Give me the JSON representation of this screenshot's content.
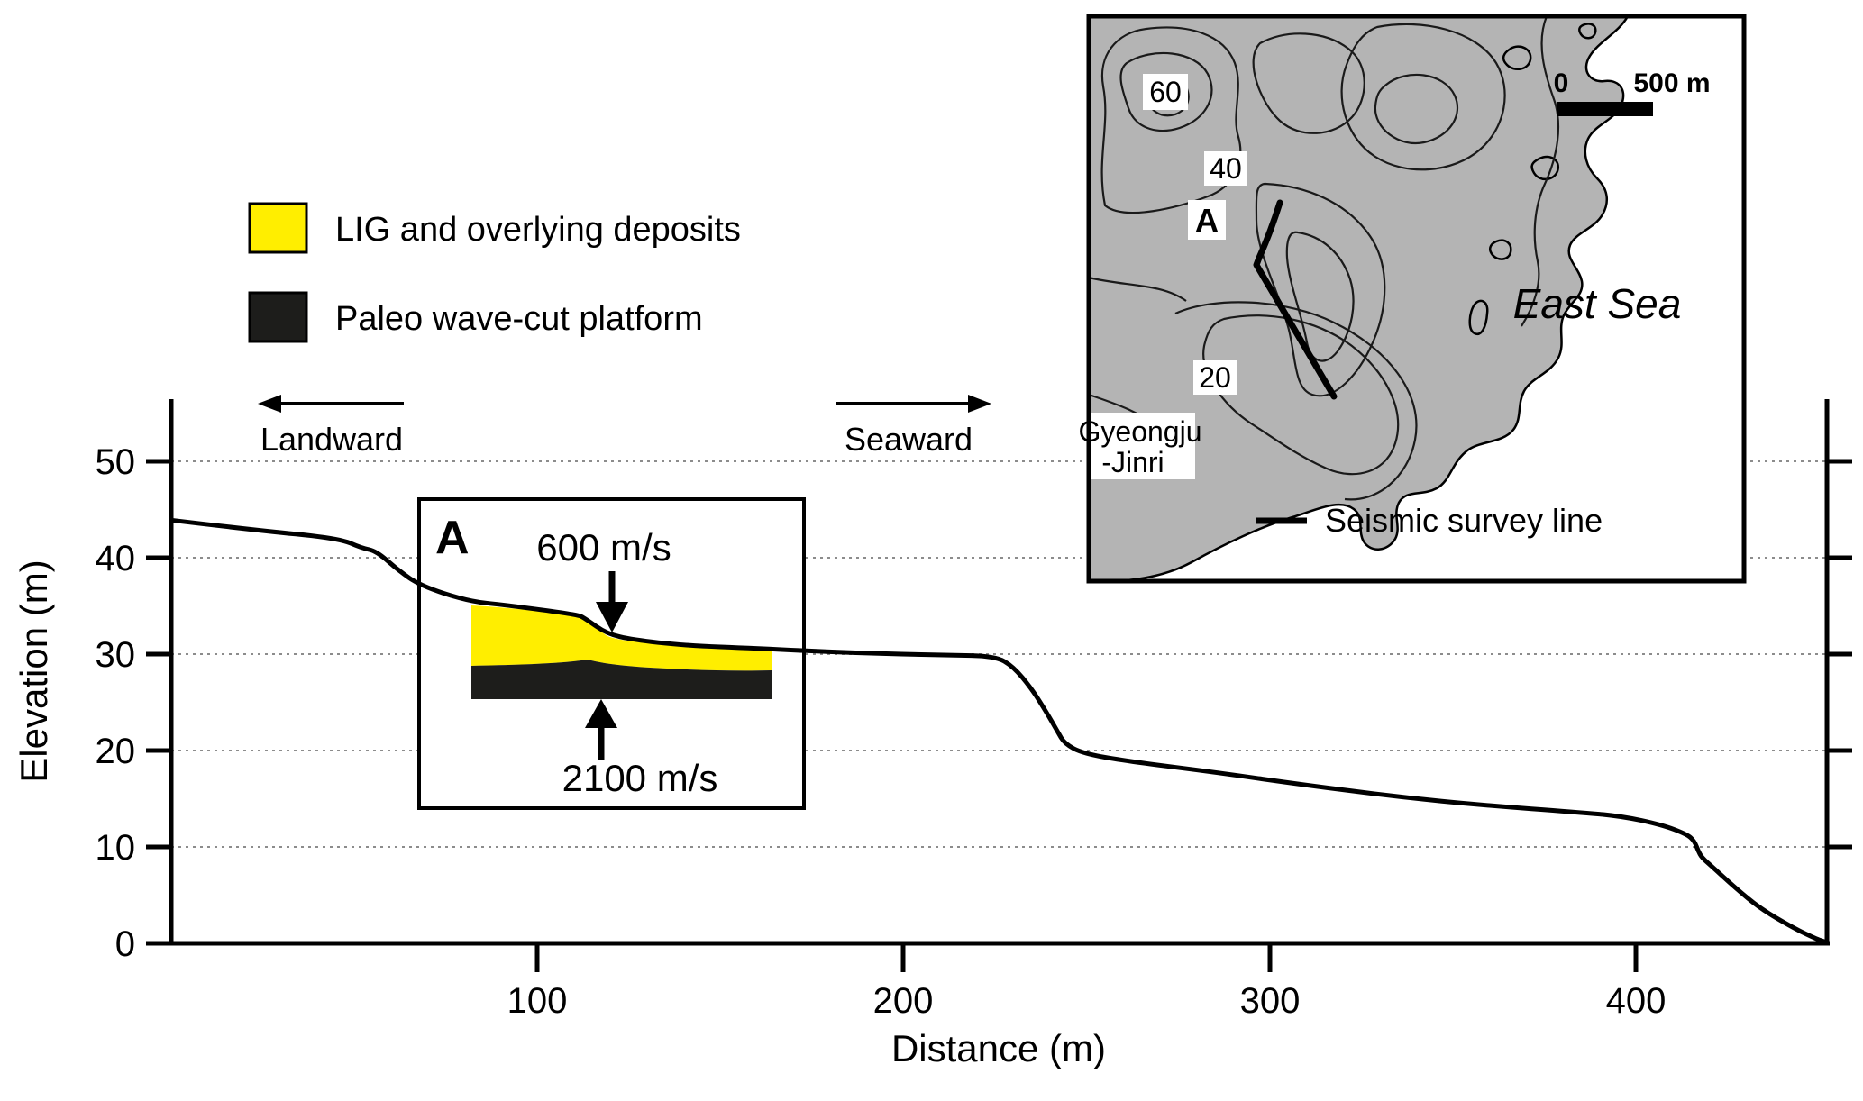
{
  "figure": {
    "legend": {
      "items": [
        {
          "label": "LIG and overlying deposits",
          "color": "#ffee00"
        },
        {
          "label": "Paleo wave-cut platform",
          "color": "#1d1d1b"
        }
      ]
    },
    "arrows": {
      "landward": "Landward",
      "seaward": "Seaward"
    },
    "axes": {
      "x_label": "Distance (m)",
      "y_label": "Elevation (m)",
      "x_ticks": [
        "100",
        "200",
        "300",
        "400"
      ],
      "y_ticks": [
        "0",
        "10",
        "20",
        "30",
        "40",
        "50"
      ]
    },
    "inset_a": {
      "label": "A",
      "v_top": "600 m/s",
      "v_bottom": "2100 m/s"
    },
    "map": {
      "labels": {
        "c60": "60",
        "c40": "40",
        "c20": "20",
        "point": "A",
        "place1": "Gyeongju",
        "place2": "-Jinri",
        "sea": "East Sea",
        "scale0": "0",
        "scale500": "500 m",
        "legend": "Seismic survey line"
      }
    }
  },
  "chart_data": {
    "type": "line",
    "xlabel": "Distance (m)",
    "ylabel": "Elevation (m)",
    "xlim": [
      0,
      452
    ],
    "ylim": [
      0,
      56
    ],
    "x_ticks": [
      100,
      200,
      300,
      400
    ],
    "y_ticks": [
      0,
      10,
      20,
      30,
      40,
      50
    ],
    "grid": "horizontal dotted lines at 10, 20, 30, 40, 50 m",
    "legend_entries": [
      "LIG and overlying deposits",
      "Paleo wave-cut platform"
    ],
    "series": [
      {
        "name": "Topographic profile along seismic survey line",
        "x": [
          0,
          22,
          46,
          52,
          56,
          62,
          68,
          81,
          91,
          111,
          113,
          119,
          126,
          140,
          160,
          187,
          212,
          225,
          230,
          235,
          239,
          242,
          244,
          249,
          261,
          286,
          310,
          335,
          359,
          384,
          396,
          407,
          414,
          416,
          417,
          418,
          421,
          427,
          434,
          443,
          449,
          452
        ],
        "y": [
          43.9,
          42.9,
          42.0,
          41.0,
          40.7,
          38.7,
          37.1,
          35.5,
          35.1,
          34.1,
          33.7,
          32.1,
          31.5,
          30.9,
          30.6,
          30.1,
          29.9,
          29.8,
          28.7,
          26.4,
          24.0,
          22.0,
          20.7,
          19.7,
          18.9,
          17.7,
          16.4,
          15.2,
          14.3,
          13.6,
          13.2,
          12.3,
          11.3,
          10.6,
          9.6,
          8.9,
          7.9,
          5.8,
          3.6,
          1.6,
          0.5,
          0.1
        ]
      }
    ],
    "annotations": [
      {
        "label": "Landward",
        "type": "direction-arrow",
        "direction": "left"
      },
      {
        "label": "Seaward",
        "type": "direction-arrow",
        "direction": "right"
      },
      {
        "label": "A",
        "type": "inset",
        "upper_layer_velocity_m_s": 600,
        "lower_layer_velocity_m_s": 2100
      },
      {
        "type": "map-inset",
        "scale_bar_m": 500,
        "sea": "East Sea",
        "place": "Gyeongju-Jinri",
        "contours": [
          20,
          40,
          60
        ]
      }
    ]
  }
}
